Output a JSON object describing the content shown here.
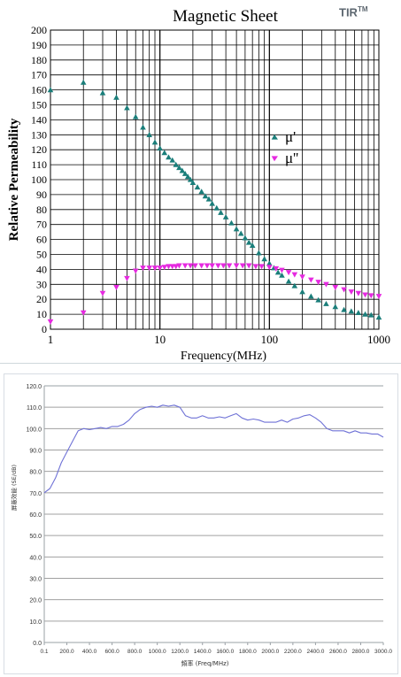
{
  "brand": {
    "text": "TIR",
    "superscript": "TM"
  },
  "chart_data": [
    {
      "type": "scatter",
      "title": "Magnetic Sheet",
      "xlabel": "Frequency(MHz)",
      "ylabel": "Relative Permeability",
      "xscale": "log",
      "xlim": [
        1,
        1000
      ],
      "ylim": [
        0,
        200
      ],
      "yticks": [
        0,
        10,
        20,
        30,
        40,
        50,
        60,
        70,
        80,
        90,
        100,
        110,
        120,
        130,
        140,
        150,
        160,
        170,
        180,
        190,
        200
      ],
      "xtick_labels": [
        "1",
        "10",
        "100",
        "1000"
      ],
      "grid": true,
      "legend": {
        "placement": "right-middle",
        "entries": [
          "μ'",
          "μ''"
        ]
      },
      "series": [
        {
          "name": "μ'",
          "color": "#1a7e7a",
          "marker": "triangle-up",
          "x": [
            1,
            2,
            3,
            4,
            5,
            6,
            7,
            8,
            9,
            10,
            11,
            12,
            13,
            14,
            15,
            16,
            17,
            18,
            19,
            20,
            22,
            24,
            26,
            28,
            30,
            33,
            36,
            40,
            45,
            50,
            55,
            60,
            65,
            70,
            80,
            90,
            100,
            110,
            120,
            130,
            150,
            170,
            200,
            240,
            280,
            330,
            400,
            480,
            560,
            650,
            750,
            850,
            1000
          ],
          "y": [
            160,
            165,
            158,
            155,
            148,
            142,
            135,
            130,
            125,
            121,
            118,
            115,
            113,
            110,
            108,
            106,
            104,
            102,
            100,
            98,
            95,
            92,
            89,
            87,
            84,
            81,
            78,
            75,
            71,
            67,
            64,
            61,
            58,
            56,
            51,
            47,
            44,
            41,
            38,
            36,
            32,
            29,
            25,
            22,
            19.5,
            17,
            15,
            13,
            12,
            11,
            10,
            9.5,
            8
          ]
        },
        {
          "name": "μ''",
          "color": "#e629e0",
          "marker": "triangle-down",
          "x": [
            1,
            2,
            3,
            4,
            5,
            6,
            7,
            8,
            9,
            10,
            11,
            12,
            13,
            14,
            15,
            17,
            19,
            21,
            24,
            27,
            30,
            34,
            38,
            43,
            50,
            57,
            65,
            75,
            85,
            100,
            115,
            130,
            150,
            170,
            200,
            240,
            280,
            330,
            400,
            480,
            560,
            650,
            750,
            850,
            1000
          ],
          "y": [
            5,
            11,
            24,
            28,
            34,
            39,
            41,
            41,
            41,
            41,
            41.5,
            42,
            42,
            42,
            42.5,
            42.5,
            42.5,
            42.5,
            42.5,
            42.5,
            42.5,
            42.5,
            42.5,
            42.5,
            42.5,
            42.5,
            42.5,
            42,
            42,
            41.5,
            40.5,
            39.5,
            38,
            36.5,
            35,
            33,
            31.5,
            30,
            28,
            26.5,
            25,
            24,
            23,
            22.5,
            22
          ]
        }
      ]
    },
    {
      "type": "line",
      "xlabel": "頻率 (Freq/MHz)",
      "ylabel": "屏蔽效能 (SE/dB)",
      "xlim": [
        0.1,
        3000
      ],
      "ylim": [
        0,
        120
      ],
      "xtick_labels": [
        "0.1",
        "200.0",
        "400.0",
        "600.0",
        "800.0",
        "1000.0",
        "1200.0",
        "1400.0",
        "1600.0",
        "1800.0",
        "2000.0",
        "2200.0",
        "2400.0",
        "2600.0",
        "2800.0",
        "3000.0"
      ],
      "ytick_labels": [
        "0.0",
        "10.0",
        "20.0",
        "30.0",
        "40.0",
        "50.0",
        "60.0",
        "70.0",
        "80.0",
        "90.0",
        "100.0",
        "110.0",
        "120.0"
      ],
      "grid": true,
      "series": [
        {
          "color": "#6f72d6",
          "x": [
            0,
            50,
            100,
            150,
            200,
            250,
            300,
            350,
            400,
            450,
            500,
            550,
            600,
            650,
            700,
            750,
            800,
            850,
            900,
            950,
            1000,
            1050,
            1100,
            1150,
            1200,
            1250,
            1300,
            1350,
            1400,
            1450,
            1500,
            1550,
            1600,
            1650,
            1700,
            1750,
            1800,
            1850,
            1900,
            1950,
            2000,
            2050,
            2100,
            2150,
            2200,
            2250,
            2300,
            2350,
            2400,
            2450,
            2500,
            2550,
            2600,
            2650,
            2700,
            2750,
            2800,
            2850,
            2900,
            2950,
            3000
          ],
          "y": [
            70,
            72,
            77,
            84,
            89,
            94,
            99,
            100,
            99.5,
            100,
            100.5,
            100,
            101,
            101,
            102,
            104,
            107,
            109,
            110,
            110.5,
            110,
            111,
            110.5,
            111,
            110,
            106,
            105,
            105,
            106,
            105,
            105,
            105.5,
            105,
            106,
            107,
            105,
            104,
            104.5,
            104,
            103,
            103,
            103,
            104,
            103,
            104.5,
            105,
            106,
            106.5,
            105,
            103,
            100,
            99,
            99,
            99,
            98,
            99,
            98,
            98,
            97.5,
            97.5,
            96
          ]
        }
      ]
    }
  ]
}
